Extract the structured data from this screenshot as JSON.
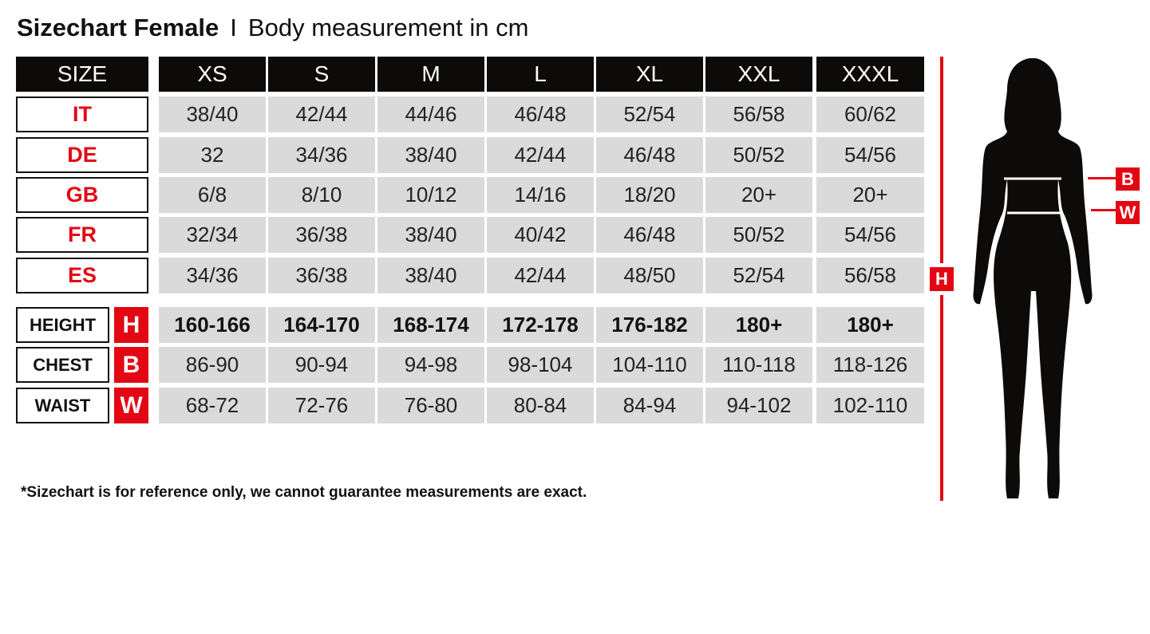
{
  "title": {
    "main": "Sizechart Female",
    "separator": "I",
    "subtitle": "Body measurement in cm"
  },
  "header": {
    "label": "SIZE",
    "sizes": [
      "XS",
      "S",
      "M",
      "L",
      "XL",
      "XXL",
      "XXXL"
    ]
  },
  "size_rows": [
    {
      "label": "IT",
      "values": [
        "38/40",
        "42/44",
        "44/46",
        "46/48",
        "52/54",
        "56/58",
        "60/62"
      ]
    },
    {
      "label": "DE",
      "values": [
        "32",
        "34/36",
        "38/40",
        "42/44",
        "46/48",
        "50/52",
        "54/56"
      ]
    },
    {
      "label": "GB",
      "values": [
        "6/8",
        "8/10",
        "10/12",
        "14/16",
        "18/20",
        "20+",
        "20+"
      ]
    },
    {
      "label": "FR",
      "values": [
        "32/34",
        "36/38",
        "38/40",
        "40/42",
        "46/48",
        "50/52",
        "54/56"
      ]
    },
    {
      "label": "ES",
      "values": [
        "34/36",
        "36/38",
        "38/40",
        "42/44",
        "48/50",
        "52/54",
        "56/58"
      ]
    }
  ],
  "measure_rows": [
    {
      "label": "HEIGHT",
      "code": "H",
      "values": [
        "160-166",
        "164-170",
        "168-174",
        "172-178",
        "176-182",
        "180+",
        "180+"
      ]
    },
    {
      "label": "CHEST",
      "code": "B",
      "values": [
        "86-90",
        "90-94",
        "94-98",
        "98-104",
        "104-110",
        "110-118",
        "118-126"
      ]
    },
    {
      "label": "WAIST",
      "code": "W",
      "values": [
        "68-72",
        "72-76",
        "76-80",
        "80-84",
        "84-94",
        "94-102",
        "102-110"
      ]
    }
  ],
  "figure": {
    "height_marker": "H",
    "chest_marker": "B",
    "waist_marker": "W"
  },
  "footnote": "*Sizechart is for reference only, we cannot guarantee measurements are exact.",
  "colors": {
    "accent": "#e30613",
    "header_bg": "#0c0b09",
    "cell_bg": "#dadada"
  }
}
